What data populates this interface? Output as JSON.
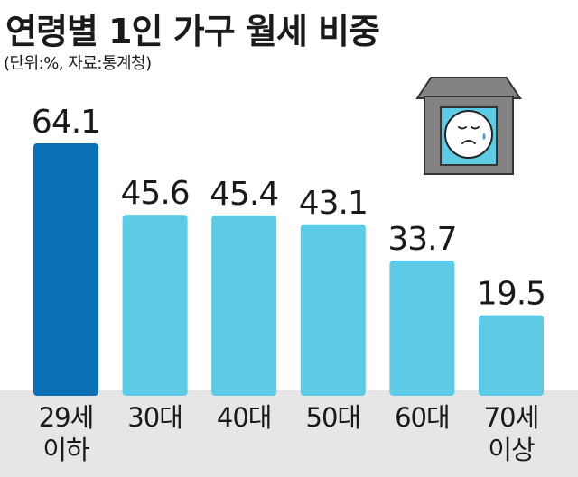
{
  "title": "연령별 1인 가구 월세 비중",
  "subtitle": "(단위:%, 자료:통계청)",
  "colors": {
    "highlight": "#0a6fb4",
    "bar": "#5ecbe6",
    "band": "#e6e6e6"
  },
  "chart_data": {
    "type": "bar",
    "title": "연령별 1인 가구 월세 비중",
    "subtitle": "(단위:%, 자료:통계청)",
    "categories": [
      [
        "29세",
        "이하"
      ],
      [
        "30대"
      ],
      [
        "40대"
      ],
      [
        "50대"
      ],
      [
        "60대"
      ],
      [
        "70세",
        "이상"
      ]
    ],
    "values": [
      64.1,
      45.6,
      45.4,
      43.1,
      33.7,
      19.5
    ],
    "highlight_index": 0,
    "ylim": [
      0,
      64.1
    ],
    "grid": false,
    "legend": "none"
  },
  "icon": "crying-face-in-house-icon"
}
